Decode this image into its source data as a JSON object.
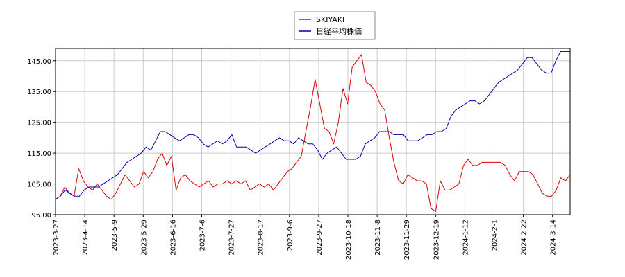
{
  "chart_data": {
    "type": "line",
    "legend_position": "top-center",
    "grid": true,
    "ylim": [
      95,
      149
    ],
    "yticks": [
      "95.00",
      "105.00",
      "115.00",
      "125.00",
      "135.00",
      "145.00"
    ],
    "xticks": [
      "2023-3-27",
      "2023-4-14",
      "2023-5-9",
      "2023-5-29",
      "2023-6-16",
      "2023-7-6",
      "2023-7-27",
      "2023-8-17",
      "2023-9-6",
      "2023-9-27",
      "2023-10-18",
      "2023-11-8",
      "2023-11-29",
      "2023-12-19",
      "2024-1-12",
      "2024-2-1",
      "2024-2-22",
      "2024-3-14"
    ],
    "series": [
      {
        "name": "SKIYAKI",
        "color": "#dd0000",
        "values": [
          100,
          101,
          104,
          102,
          101,
          110,
          106,
          104,
          103,
          105,
          103,
          101,
          100,
          102,
          105,
          108,
          106,
          104,
          105,
          109,
          107,
          109,
          113,
          115,
          111,
          114,
          103,
          107,
          108,
          106,
          105,
          104,
          105,
          106,
          104,
          105,
          105,
          106,
          105,
          106,
          105,
          106,
          103,
          104,
          105,
          104,
          105,
          103,
          105,
          107,
          109,
          110,
          112,
          114,
          122,
          130,
          139,
          131,
          123,
          122,
          118,
          125,
          136,
          131,
          143,
          145,
          147,
          138,
          137,
          135,
          131,
          129,
          120,
          112,
          106,
          105,
          108,
          107,
          106,
          106,
          105,
          97,
          96,
          106,
          103,
          103,
          104,
          105,
          111,
          113,
          111,
          111,
          112,
          112,
          112,
          112,
          112,
          111,
          108,
          106,
          109,
          109,
          109,
          108,
          105,
          102,
          101,
          101,
          103,
          107,
          106,
          108
        ]
      },
      {
        "name": "日経平均株価",
        "color": "#0000aa",
        "values": [
          100,
          101,
          103,
          102,
          101,
          101,
          103,
          104,
          104,
          104,
          105,
          106,
          107,
          108,
          110,
          112,
          113,
          114,
          115,
          117,
          116,
          119,
          122,
          122,
          121,
          120,
          119,
          120,
          121,
          121,
          120,
          118,
          117,
          118,
          119,
          118,
          119,
          121,
          117,
          117,
          117,
          116,
          115,
          116,
          117,
          118,
          119,
          120,
          119,
          119,
          118,
          120,
          119,
          118,
          118,
          116,
          113,
          115,
          116,
          117,
          115,
          113,
          113,
          113,
          114,
          118,
          119,
          120,
          122,
          122,
          122,
          121,
          121,
          121,
          119,
          119,
          119,
          120,
          121,
          121,
          122,
          122,
          123,
          127,
          129,
          130,
          131,
          132,
          132,
          131,
          132,
          134,
          136,
          138,
          139,
          140,
          141,
          142,
          144,
          146,
          146,
          144,
          142,
          141,
          141,
          145,
          148,
          148,
          148
        ]
      }
    ]
  }
}
